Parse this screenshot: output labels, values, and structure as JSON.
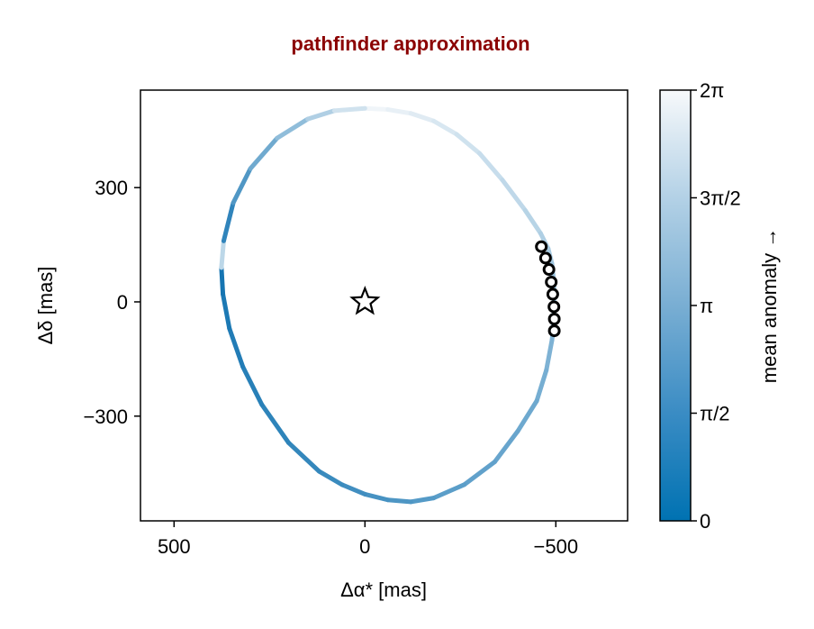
{
  "chart_data": {
    "type": "scatter",
    "title": "pathfinder approximation",
    "xlabel": "Δα* [mas]",
    "ylabel": "Δδ [mas]",
    "x_reversed": true,
    "xlim": [
      588,
      -688
    ],
    "ylim": [
      -575,
      556
    ],
    "xticks": [
      500,
      0,
      -500
    ],
    "xtick_labels": [
      "500",
      "0",
      "−500"
    ],
    "yticks": [
      300,
      0,
      -300
    ],
    "ytick_labels": [
      "300",
      "0",
      "−300"
    ],
    "grid": false,
    "orbit": {
      "color_by": "mean anomaly",
      "points": [
        [
          0,
          508
        ],
        [
          -60,
          505
        ],
        [
          -120,
          495
        ],
        [
          -180,
          475
        ],
        [
          -240,
          440
        ],
        [
          -300,
          390
        ],
        [
          -360,
          320
        ],
        [
          -420,
          240
        ],
        [
          -460,
          180
        ],
        [
          -480,
          140
        ],
        [
          -490,
          100
        ],
        [
          -495,
          50
        ],
        [
          -495,
          0
        ],
        [
          -495,
          -50
        ],
        [
          -490,
          -100
        ],
        [
          -475,
          -180
        ],
        [
          -450,
          -260
        ],
        [
          -400,
          -340
        ],
        [
          -340,
          -420
        ],
        [
          -260,
          -480
        ],
        [
          -180,
          -515
        ],
        [
          -120,
          -525
        ],
        [
          -60,
          -520
        ],
        [
          0,
          -505
        ],
        [
          60,
          -480
        ],
        [
          120,
          -445
        ],
        [
          200,
          -370
        ],
        [
          270,
          -270
        ],
        [
          320,
          -170
        ],
        [
          355,
          -70
        ],
        [
          372,
          20
        ],
        [
          376,
          90
        ],
        [
          370,
          160
        ],
        [
          345,
          260
        ],
        [
          300,
          350
        ],
        [
          230,
          430
        ],
        [
          150,
          480
        ],
        [
          80,
          502
        ],
        [
          0,
          508
        ]
      ],
      "split_index": 31,
      "colors_first_half": [
        "#1f77b4",
        "#1f77b4",
        "#2e8ac4",
        "#4090c7",
        "#5d9fcd",
        "#77acd2",
        "#8db8d7",
        "#a0c4dd",
        "#aecde3",
        "#b8d3e7",
        "#c3dbeb",
        "#cfe2ef",
        "#dde9f3",
        "#eaf1f7",
        "#f3f6f9"
      ],
      "colors_second_half": [
        "#0b6faf",
        "#0b6faf"
      ]
    },
    "observations": [
      {
        "x": -462,
        "y": 145
      },
      {
        "x": -473,
        "y": 115
      },
      {
        "x": -482,
        "y": 85
      },
      {
        "x": -488,
        "y": 52
      },
      {
        "x": -492,
        "y": 20
      },
      {
        "x": -495,
        "y": -13
      },
      {
        "x": -496,
        "y": -45
      },
      {
        "x": -496,
        "y": -76
      }
    ],
    "star": {
      "x": 0,
      "y": 0
    },
    "colorbar": {
      "label": "mean anomaly →",
      "ticks": [
        0,
        1.5708,
        3.1416,
        4.7124,
        6.2832
      ],
      "tick_labels": [
        "0",
        "π/2",
        "π",
        "3π/2",
        "2π"
      ],
      "range": [
        0,
        6.2832
      ],
      "color_low": "#0072b2",
      "color_high": "#f7f9fb"
    }
  }
}
